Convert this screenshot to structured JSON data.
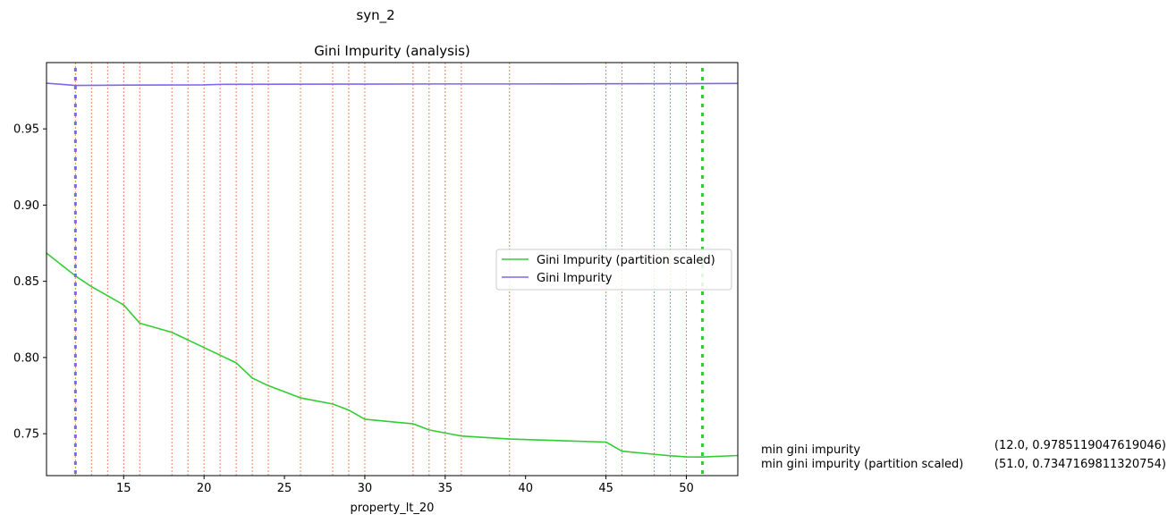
{
  "figure_title": "syn_2",
  "chart_data": {
    "type": "line",
    "title": "Gini Impurity (analysis)",
    "xlabel": "property_lt_20",
    "ylabel": "",
    "xlim": [
      10.2,
      53.2
    ],
    "ylim": [
      0.7225,
      0.9935
    ],
    "xticks": [
      15,
      20,
      25,
      30,
      35,
      40,
      45,
      50
    ],
    "yticks": [
      0.75,
      0.8,
      0.85,
      0.9,
      0.95
    ],
    "xtick_labels": [
      "15",
      "20",
      "25",
      "30",
      "35",
      "40",
      "45",
      "50"
    ],
    "ytick_labels": [
      "0.75",
      "0.80",
      "0.85",
      "0.90",
      "0.95"
    ],
    "grid": false,
    "legend_position": "center-right",
    "series": [
      {
        "name": "Gini Impurity (partition scaled)",
        "color": "#32cd32",
        "x": [
          10.2,
          12,
          13,
          14,
          15,
          16,
          18,
          19,
          20,
          21,
          22,
          23,
          24,
          26,
          28,
          29,
          30,
          33,
          34,
          35,
          36,
          39,
          45,
          46,
          48,
          49,
          50,
          51,
          53.2
        ],
        "y": [
          0.8685,
          0.8535,
          0.8465,
          0.8405,
          0.8345,
          0.8225,
          0.8165,
          0.8115,
          0.8065,
          0.8015,
          0.7965,
          0.7865,
          0.7815,
          0.7735,
          0.7695,
          0.7655,
          0.7595,
          0.7565,
          0.7525,
          0.7505,
          0.7485,
          0.7465,
          0.7445,
          0.7385,
          0.7365,
          0.7355,
          0.7348,
          0.7347,
          0.7357
        ]
      },
      {
        "name": "Gini Impurity",
        "color": "#7b68ee",
        "x": [
          10.2,
          12,
          15,
          20,
          21,
          25,
          30,
          35,
          40,
          45,
          50,
          53.2
        ],
        "y": [
          0.98,
          0.9785,
          0.9787,
          0.9789,
          0.9792,
          0.9793,
          0.9794,
          0.9795,
          0.9795,
          0.9796,
          0.9797,
          0.9798
        ]
      }
    ],
    "split_lines": {
      "color": "#ff7f50",
      "x": [
        12,
        13,
        14,
        15,
        16,
        18,
        19,
        20,
        21,
        22,
        23,
        24,
        26,
        28,
        29,
        30,
        33,
        34,
        35,
        36,
        39,
        45,
        46,
        48,
        49,
        50
      ]
    },
    "min_markers": [
      {
        "x": 12,
        "color": "#7b68ee"
      },
      {
        "x": 51,
        "color": "#32cd32"
      }
    ]
  },
  "annotations": {
    "min_label": "min gini impurity",
    "min_value": "(12.0, 0.9785119047619046)",
    "min_scaled_label": "min gini impurity (partition scaled)",
    "min_scaled_value": "(51.0, 0.7347169811320754)"
  }
}
